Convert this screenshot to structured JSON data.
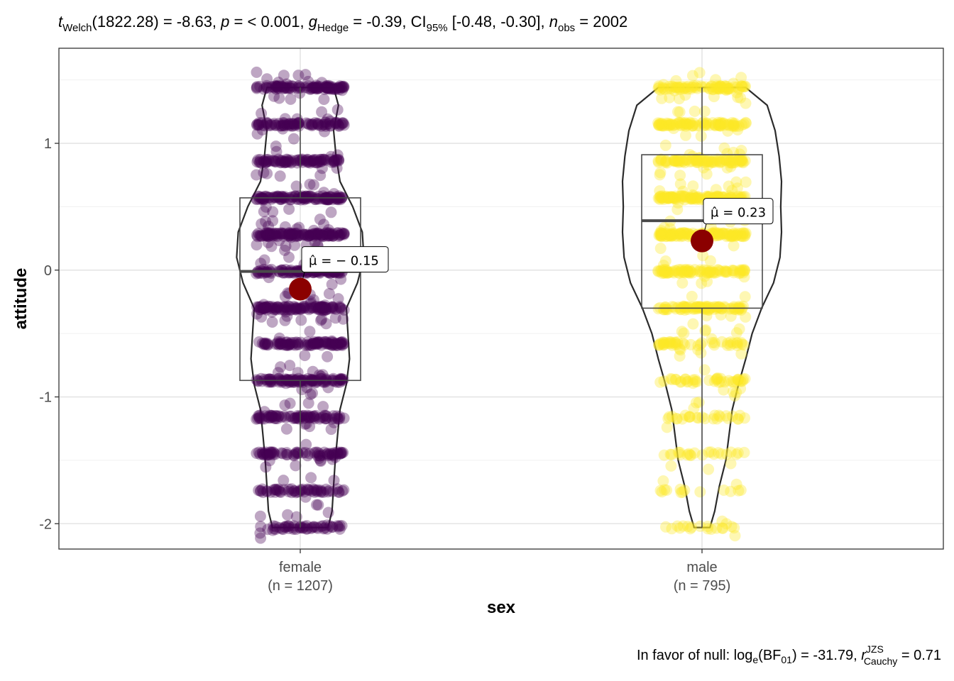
{
  "chart_data": {
    "type": "violin",
    "title": {
      "t": "t",
      "t_sub": "Welch",
      "t_val": "(1822.28) = -8.63, ",
      "p": "p",
      "p_val": " = < 0.001, ",
      "g": "g",
      "g_sub": "Hedge",
      "g_val": " = -0.39, CI",
      "ci_sub": "95%",
      "ci_val": " [-0.48, -0.30], ",
      "n": "n",
      "n_sub": "obs",
      "n_val": " = 2002"
    },
    "caption": {
      "prefix": "In favor of null: log",
      "log_sub": "e",
      "mid": "(BF",
      "bf_sub": "01",
      "val": ") = -31.79, ",
      "r": "r",
      "r_sup": "JZS",
      "r_sub": "Cauchy",
      "r_val": " = 0.71"
    },
    "xlabel": "sex",
    "ylabel": "attitude",
    "ylim": [
      -2.2,
      1.75
    ],
    "yticks": [
      "-2",
      "-1",
      "0",
      "1"
    ],
    "y_tick_values": [
      -2,
      -1,
      0,
      1
    ],
    "grid": true,
    "groups": [
      {
        "name": "female",
        "n_label": "(n = 1207)",
        "color": "#440154",
        "mean": -0.15,
        "mean_label": "= − 0.15",
        "box": {
          "q1": -0.87,
          "median": -0.01,
          "q3": 0.57,
          "lower": -2.03,
          "upper": 1.44
        },
        "levels": [
          1.44,
          1.15,
          0.86,
          0.57,
          0.28,
          -0.01,
          -0.3,
          -0.58,
          -0.87,
          -1.16,
          -1.45,
          -1.74,
          -2.03
        ],
        "level_counts": [
          110,
          90,
          95,
          120,
          140,
          110,
          125,
          95,
          110,
          85,
          75,
          60,
          55
        ],
        "violin_y": [
          -2.03,
          -1.9,
          -1.7,
          -1.5,
          -1.3,
          -1.1,
          -0.9,
          -0.7,
          -0.5,
          -0.3,
          -0.1,
          0.1,
          0.3,
          0.5,
          0.7,
          0.9,
          1.1,
          1.3,
          1.44
        ],
        "violin_w": [
          0.35,
          0.4,
          0.42,
          0.44,
          0.47,
          0.5,
          0.58,
          0.62,
          0.6,
          0.58,
          0.72,
          0.8,
          0.78,
          0.66,
          0.5,
          0.45,
          0.42,
          0.48,
          0.42
        ]
      },
      {
        "name": "male",
        "n_label": "(n = 795)",
        "color": "#fde725",
        "mean": 0.23,
        "mean_label": "= 0.23",
        "box": {
          "q1": -0.3,
          "median": 0.39,
          "q3": 0.91,
          "lower": -2.03,
          "upper": 1.44
        },
        "levels": [
          1.44,
          1.15,
          0.86,
          0.57,
          0.28,
          -0.01,
          -0.3,
          -0.58,
          -0.87,
          -1.16,
          -1.45,
          -1.74,
          -2.03
        ],
        "level_counts": [
          90,
          95,
          100,
          110,
          120,
          90,
          85,
          55,
          45,
          30,
          25,
          15,
          20
        ],
        "violin_y": [
          -2.03,
          -1.9,
          -1.7,
          -1.5,
          -1.3,
          -1.1,
          -0.9,
          -0.7,
          -0.5,
          -0.3,
          -0.1,
          0.1,
          0.3,
          0.5,
          0.7,
          0.9,
          1.1,
          1.3,
          1.44
        ],
        "violin_w": [
          0.1,
          0.16,
          0.22,
          0.3,
          0.34,
          0.38,
          0.46,
          0.55,
          0.63,
          0.75,
          0.9,
          0.98,
          1.0,
          0.99,
          1.0,
          0.97,
          0.92,
          0.82,
          0.55
        ]
      }
    ],
    "point_alpha": 0.35,
    "mean_color": "#8b0000"
  }
}
